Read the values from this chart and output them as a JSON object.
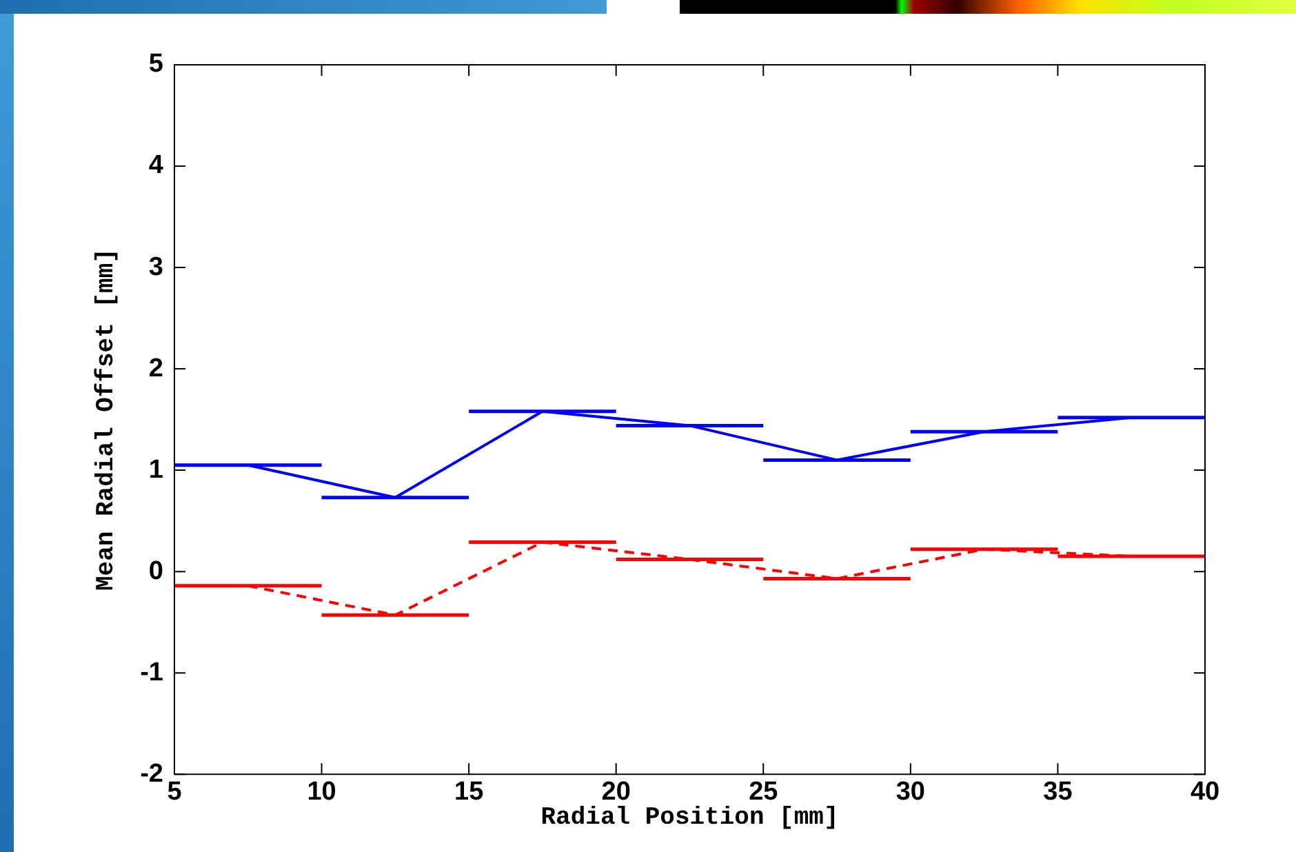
{
  "chart_data": {
    "type": "line",
    "xlabel": "Radial Position [mm]",
    "ylabel": "Mean Radial Offset [mm]",
    "x": [
      7.5,
      12.5,
      17.5,
      22.5,
      27.5,
      32.5,
      37.5
    ],
    "series": [
      {
        "color": "#0000ff",
        "values": [
          1.05,
          0.73,
          1.58,
          1.44,
          1.1,
          1.38,
          1.52
        ],
        "xerrors": [
          2.5,
          2.5,
          2.5,
          2.5,
          2.5,
          2.5,
          2.5
        ],
        "line_style": "solid"
      },
      {
        "color": "#ff0000",
        "values": [
          -0.14,
          -0.43,
          0.29,
          0.12,
          -0.07,
          0.22,
          0.15
        ],
        "xerrors": [
          2.5,
          2.5,
          2.5,
          2.5,
          2.5,
          2.5,
          2.5
        ],
        "line_style": "dashed"
      }
    ],
    "xlim": [
      5,
      40
    ],
    "ylim": [
      -2,
      5
    ],
    "xticks": [
      5,
      10,
      15,
      20,
      25,
      30,
      35,
      40
    ],
    "yticks": [
      -2,
      -1,
      0,
      1,
      2,
      3,
      4,
      5
    ],
    "grid": false,
    "marker": "none",
    "legend": false
  }
}
